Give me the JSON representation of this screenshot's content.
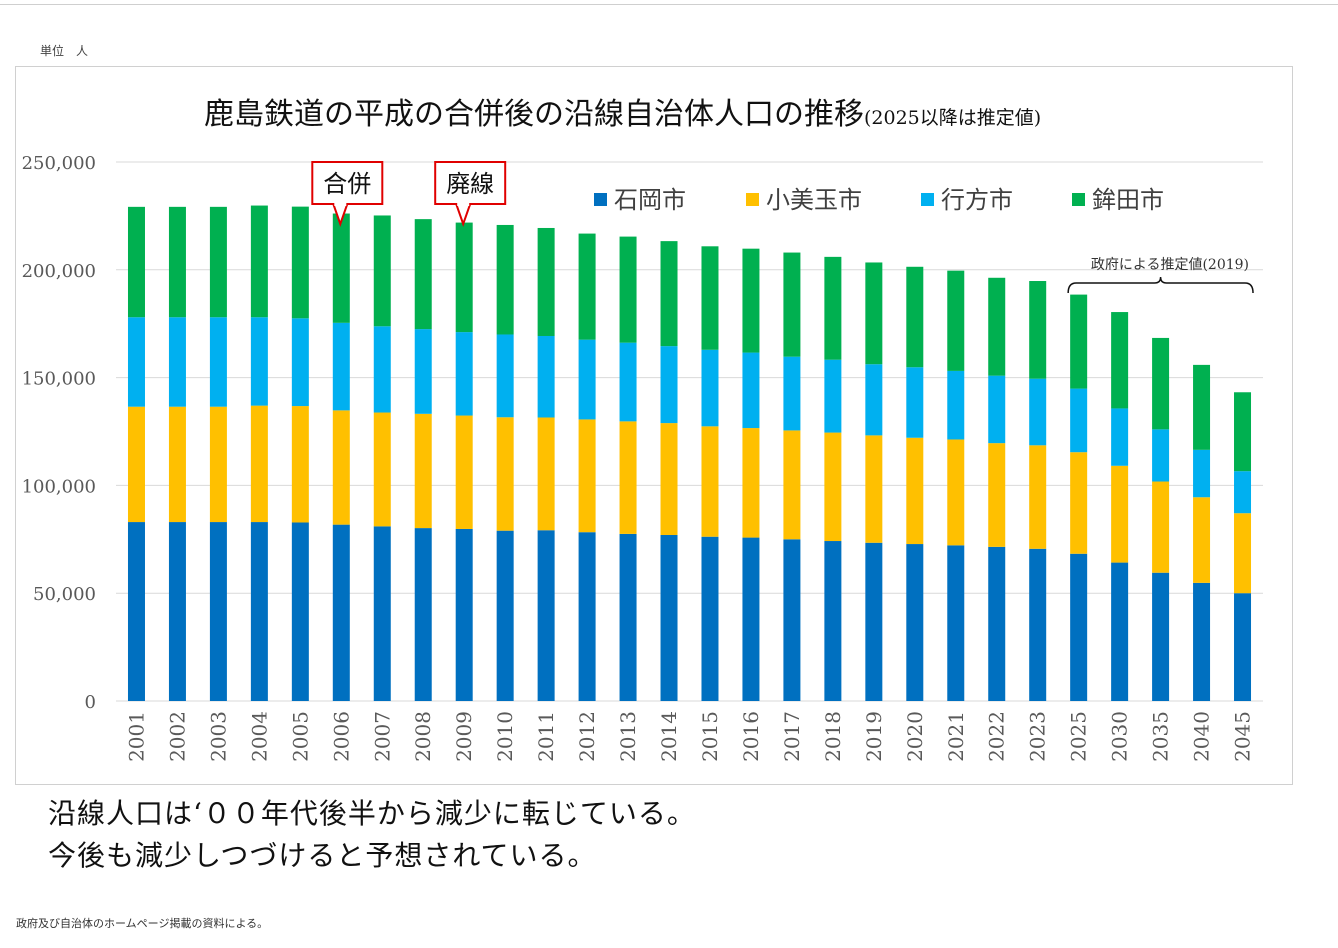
{
  "unit_label": "単位　人",
  "notes": [
    "沿線人口は‘００年代後半から減少に転じている。",
    "今後も減少しつづけると予想されている。"
  ],
  "source": "政府及び自治体のホームページ掲載の資料による。",
  "colors": {
    "石岡市": "#0070C0",
    "小美玉市": "#FFC000",
    "行方市": "#00B0F0",
    "鉾田市": "#00B050",
    "callout_border": "#E00000",
    "grid": "#D9D9D9"
  },
  "chart_data": {
    "type": "bar",
    "stacked": true,
    "title": "鹿島鉄道の平成の合併後の沿線自治体人口の推移",
    "subtitle": "(2025以降は推定値)",
    "categories": [
      "2001",
      "2002",
      "2003",
      "2004",
      "2005",
      "2006",
      "2007",
      "2008",
      "2009",
      "2010",
      "2011",
      "2012",
      "2013",
      "2014",
      "2015",
      "2016",
      "2017",
      "2018",
      "2019",
      "2020",
      "2021",
      "2022",
      "2023",
      "2025",
      "2030",
      "2035",
      "2040",
      "2045"
    ],
    "series": [
      {
        "name": "石岡市",
        "values": [
          83000,
          83000,
          83000,
          83000,
          82800,
          81800,
          81000,
          80200,
          79800,
          79000,
          79200,
          78300,
          77500,
          77000,
          76200,
          75800,
          75000,
          74200,
          73400,
          72800,
          72200,
          71500,
          70600,
          68300,
          64200,
          59500,
          54800,
          50000
        ]
      },
      {
        "name": "小美玉市",
        "values": [
          53500,
          53500,
          53500,
          54000,
          54000,
          53000,
          52800,
          53000,
          52600,
          52600,
          52300,
          52300,
          52200,
          51900,
          51200,
          50800,
          50500,
          50300,
          49800,
          49300,
          49100,
          48100,
          48000,
          47100,
          44900,
          42300,
          39700,
          37100
        ]
      },
      {
        "name": "行方市",
        "values": [
          41500,
          41500,
          41500,
          41000,
          40700,
          40600,
          40000,
          39300,
          38700,
          38400,
          37800,
          37000,
          36500,
          35700,
          35500,
          35000,
          34200,
          33800,
          33000,
          32700,
          31800,
          31300,
          30900,
          29500,
          26600,
          24200,
          22000,
          19500
        ]
      },
      {
        "name": "鉾田市",
        "values": [
          51200,
          51200,
          51200,
          51800,
          51800,
          50700,
          51400,
          51000,
          50800,
          50800,
          50100,
          49200,
          49200,
          48700,
          48000,
          48200,
          48300,
          47700,
          47200,
          46600,
          46500,
          45400,
          45300,
          43600,
          44700,
          42400,
          39400,
          36600
        ]
      }
    ],
    "ylim": [
      0,
      250000
    ],
    "yticks": [
      "0",
      "50,000",
      "100,000",
      "150,000",
      "200,000",
      "250,000"
    ],
    "grid": true,
    "legend_position": "top-right",
    "annotations": [
      {
        "text": "合併",
        "category": "2006"
      },
      {
        "text": "廃線",
        "category": "2009"
      },
      {
        "text": "政府による推定値(2019)",
        "categories": [
          "2025",
          "2045"
        ]
      }
    ]
  }
}
